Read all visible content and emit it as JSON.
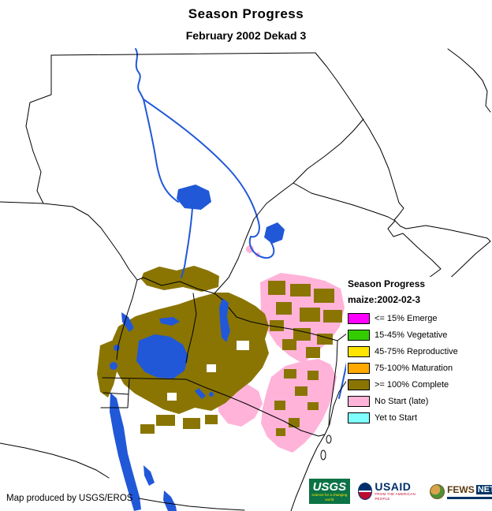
{
  "header": {
    "title": "Season Progress",
    "subtitle": "February 2002 Dekad 3"
  },
  "legend": {
    "title": "Season Progress",
    "subtitle": "maize:2002-02-3",
    "items": [
      {
        "label": "<= 15% Emerge",
        "color": "#ff00ff"
      },
      {
        "label": "15-45% Vegetative",
        "color": "#33cc00"
      },
      {
        "label": "45-75% Reproductive",
        "color": "#ffe400"
      },
      {
        "label": "75-100% Maturation",
        "color": "#ffa800"
      },
      {
        "label": ">= 100% Complete",
        "color": "#8a7503"
      },
      {
        "label": "No Start (late)",
        "color": "#ffb3d9"
      },
      {
        "label": "Yet to Start",
        "color": "#80ffff"
      }
    ]
  },
  "footer": {
    "credit": "Map produced by USGS/EROS"
  },
  "logos": {
    "usgs_label": "USGS",
    "usgs_tagline": "science for a changing world",
    "usaid_label": "USAID",
    "usaid_tagline": "FROM THE AMERICAN PEOPLE",
    "fews_label": "FEWS",
    "fews_net_label": "NET"
  },
  "map": {
    "colors": {
      "water": "#2158d8",
      "complete": "#8a7503",
      "no_start": "#ffb3d9",
      "border": "#000000",
      "background": "#ffffff"
    }
  }
}
